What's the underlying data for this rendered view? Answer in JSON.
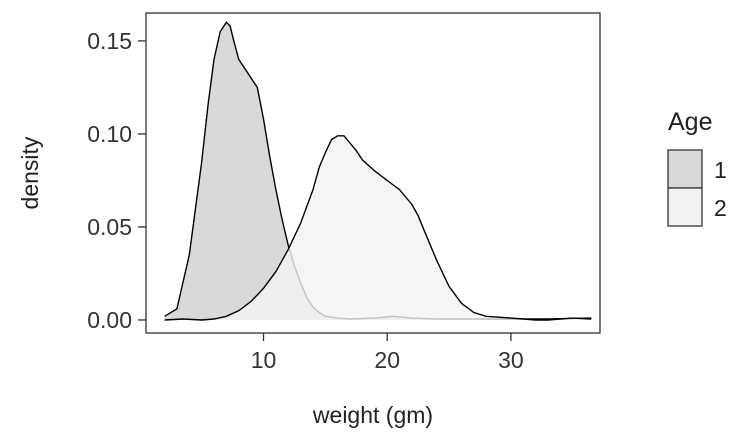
{
  "chart_data": {
    "type": "area",
    "xlabel": "weight (gm)",
    "ylabel": "density",
    "xlim": [
      0.5,
      37.2
    ],
    "ylim": [
      -0.007,
      0.165
    ],
    "xticks": [
      10,
      20,
      30
    ],
    "xtick_labels": [
      "10",
      "20",
      "30"
    ],
    "yticks": [
      0.0,
      0.05,
      0.1,
      0.15
    ],
    "ytick_labels": [
      "0.00",
      "0.05",
      "0.10",
      "0.15"
    ],
    "grid": false,
    "legend": {
      "title": "Age",
      "position": "right",
      "entries": [
        "1",
        "2"
      ]
    },
    "colors": {
      "1": "#d9d9d9",
      "2": "#f2f2f2",
      "outline": "#000000"
    },
    "series": [
      {
        "name": "1",
        "x": [
          2.0,
          3.0,
          4.0,
          5.0,
          5.5,
          6.0,
          6.5,
          7.0,
          7.3,
          7.6,
          8.0,
          8.5,
          9.0,
          9.5,
          10.0,
          10.5,
          11.0,
          11.5,
          12.0,
          12.5,
          13.0,
          13.5,
          14.0,
          14.5,
          15.0,
          16.0,
          17.0,
          19.0,
          20.5,
          22.0,
          24.0,
          27.0,
          30.0,
          33.0,
          36.5
        ],
        "y": [
          0.002,
          0.006,
          0.035,
          0.085,
          0.115,
          0.14,
          0.155,
          0.16,
          0.158,
          0.15,
          0.14,
          0.135,
          0.13,
          0.125,
          0.108,
          0.088,
          0.07,
          0.054,
          0.04,
          0.029,
          0.02,
          0.012,
          0.007,
          0.004,
          0.002,
          0.001,
          0.0005,
          0.001,
          0.002,
          0.001,
          0.0005,
          0.0005,
          0.0005,
          0.0005,
          0.001
        ]
      },
      {
        "name": "2",
        "x": [
          2.0,
          3.5,
          5.0,
          6.0,
          7.0,
          8.0,
          9.0,
          10.0,
          11.0,
          12.0,
          13.0,
          14.0,
          14.5,
          15.0,
          15.5,
          16.0,
          16.5,
          17.0,
          17.5,
          18.0,
          19.0,
          20.0,
          21.0,
          22.0,
          22.5,
          23.0,
          24.0,
          25.0,
          26.0,
          27.0,
          28.0,
          29.0,
          30.0,
          31.0,
          32.0,
          33.0,
          35.0,
          36.5
        ],
        "y": [
          0.0,
          0.0005,
          0.0,
          0.0005,
          0.002,
          0.005,
          0.01,
          0.017,
          0.026,
          0.038,
          0.052,
          0.07,
          0.082,
          0.09,
          0.097,
          0.099,
          0.099,
          0.095,
          0.091,
          0.086,
          0.08,
          0.075,
          0.07,
          0.062,
          0.056,
          0.048,
          0.032,
          0.018,
          0.009,
          0.004,
          0.002,
          0.0015,
          0.001,
          0.0005,
          0.0,
          0.0,
          0.001,
          0.0005
        ]
      }
    ]
  }
}
